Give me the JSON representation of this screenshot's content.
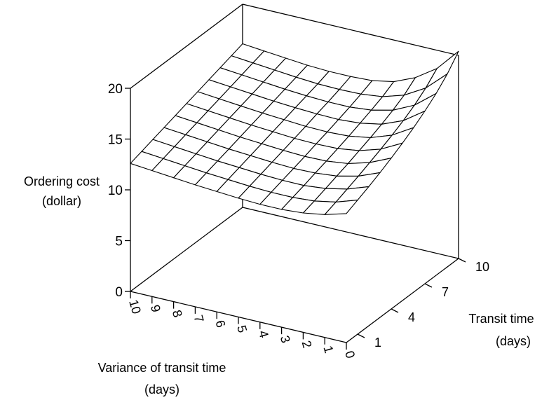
{
  "chart_data": {
    "type": "surface",
    "title": "",
    "zlabel": [
      "Ordering cost",
      "(dollar)"
    ],
    "xlabel": [
      "Variance of transit time",
      "(days)"
    ],
    "ylabel": [
      "Transit time",
      "(days)"
    ],
    "zticks": [
      0,
      5,
      10,
      15,
      20
    ],
    "xticks": [
      10,
      9,
      8,
      7,
      6,
      5,
      4,
      3,
      2,
      1,
      0
    ],
    "yticks": [
      1,
      4,
      7,
      10
    ],
    "zlim": [
      0,
      20
    ],
    "xlim": [
      0,
      10
    ],
    "ylim": [
      0,
      10
    ],
    "grid": false,
    "legend": "none",
    "colors": {
      "line": "#000000",
      "surface": "#ffffff",
      "background": "#ffffff"
    },
    "variance_values": [
      10,
      9,
      8,
      7,
      6,
      5,
      4,
      3,
      2,
      1,
      0
    ],
    "transit_values": [
      0,
      1,
      2,
      3,
      4,
      5,
      6,
      7,
      8,
      9,
      10
    ],
    "z": [
      [
        12.6,
        12.95,
        13.3,
        13.65,
        14.0,
        14.35,
        14.7,
        15.05,
        15.4,
        15.75,
        16.1
      ],
      [
        12.4,
        12.75,
        13.1,
        13.45,
        13.8,
        14.15,
        14.5,
        14.85,
        15.2,
        15.55,
        15.9
      ],
      [
        12.2,
        12.55,
        12.9,
        13.25,
        13.6,
        13.95,
        14.3,
        14.65,
        15.0,
        15.35,
        15.7
      ],
      [
        12.0,
        12.35,
        12.7,
        13.05,
        13.4,
        13.75,
        14.1,
        14.45,
        14.8,
        15.15,
        15.5
      ],
      [
        11.85,
        12.2,
        12.55,
        12.9,
        13.25,
        13.6,
        13.95,
        14.3,
        14.65,
        15.0,
        15.4
      ],
      [
        11.7,
        12.05,
        12.4,
        12.75,
        13.1,
        13.45,
        13.8,
        14.2,
        14.55,
        14.95,
        15.4
      ],
      [
        11.6,
        11.95,
        12.3,
        12.65,
        13.0,
        13.4,
        13.75,
        14.15,
        14.55,
        15.0,
        15.5
      ],
      [
        11.6,
        11.95,
        12.3,
        12.7,
        13.05,
        13.45,
        13.85,
        14.3,
        14.75,
        15.25,
        15.9
      ],
      [
        11.75,
        12.1,
        12.5,
        12.9,
        13.3,
        13.75,
        14.2,
        14.7,
        15.25,
        15.9,
        16.8
      ],
      [
        12.1,
        12.5,
        12.95,
        13.4,
        13.9,
        14.4,
        14.95,
        15.55,
        16.25,
        17.1,
        18.2
      ],
      [
        12.7,
        13.2,
        13.7,
        14.25,
        14.85,
        15.5,
        16.2,
        17.0,
        17.9,
        19.0,
        20.4
      ]
    ]
  }
}
